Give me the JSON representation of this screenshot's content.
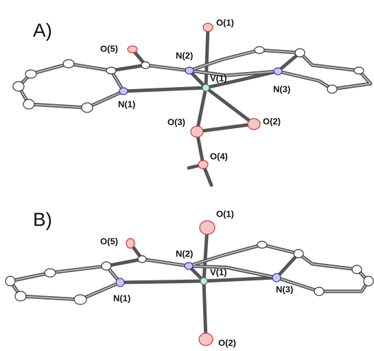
{
  "panels": [
    {
      "label": "A)",
      "atoms": [
        "O(1)",
        "O(5)",
        "N(2)",
        "V(1)",
        "N(3)",
        "N(1)",
        "O(3)",
        "O(2)",
        "O(4)"
      ]
    },
    {
      "label": "B)",
      "atoms": [
        "O(1)",
        "O(5)",
        "N(2)",
        "V(1)",
        "N(3)",
        "N(1)",
        "O(2)"
      ]
    }
  ]
}
